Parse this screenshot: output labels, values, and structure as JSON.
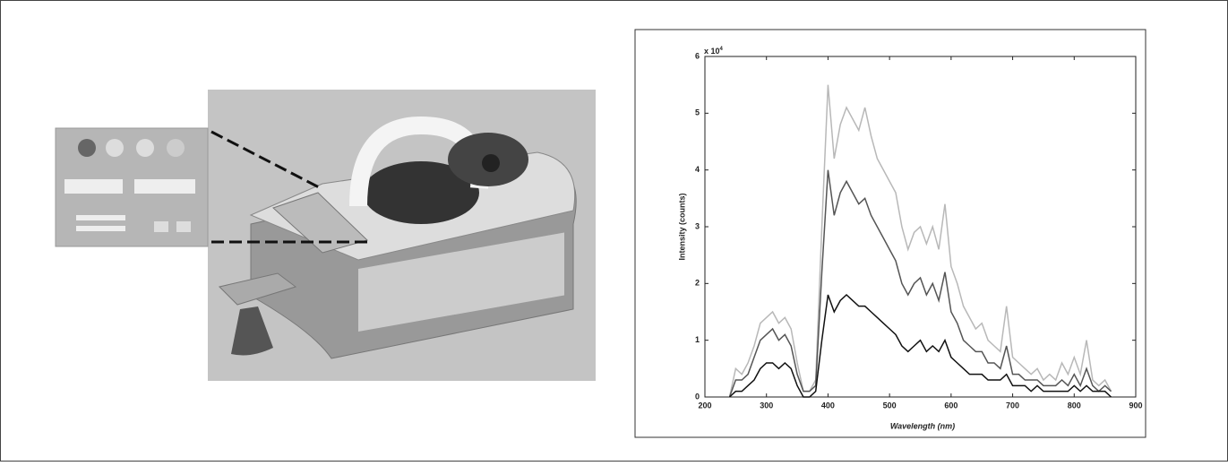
{
  "chart_data": {
    "type": "line",
    "x_label": "Wavelength (nm)",
    "y_label": "Intensity (counts)",
    "y_multiplier": {
      "base": "x 10",
      "exponent": "4"
    },
    "x": [
      240,
      250,
      260,
      270,
      280,
      290,
      300,
      310,
      320,
      330,
      340,
      350,
      360,
      370,
      380,
      390,
      400,
      410,
      420,
      430,
      440,
      450,
      460,
      470,
      480,
      490,
      500,
      510,
      520,
      530,
      540,
      550,
      560,
      570,
      580,
      590,
      600,
      610,
      620,
      630,
      640,
      650,
      660,
      670,
      680,
      690,
      700,
      710,
      720,
      730,
      740,
      750,
      760,
      770,
      780,
      790,
      800,
      810,
      820,
      830,
      840,
      850,
      860
    ],
    "series": [
      {
        "color": "#b8b8b8",
        "values": [
          0,
          0.5,
          0.4,
          0.6,
          0.9,
          1.3,
          1.4,
          1.5,
          1.3,
          1.4,
          1.2,
          0.6,
          0.1,
          0.1,
          0.3,
          3.0,
          5.5,
          4.2,
          4.8,
          5.1,
          4.9,
          4.7,
          5.1,
          4.6,
          4.2,
          4.0,
          3.8,
          3.6,
          3.0,
          2.6,
          2.9,
          3.0,
          2.7,
          3.0,
          2.6,
          3.4,
          2.3,
          2.0,
          1.6,
          1.4,
          1.2,
          1.3,
          1.0,
          0.9,
          0.8,
          1.6,
          0.7,
          0.6,
          0.5,
          0.4,
          0.5,
          0.3,
          0.4,
          0.3,
          0.6,
          0.4,
          0.7,
          0.4,
          1.0,
          0.3,
          0.2,
          0.3,
          0.1
        ]
      },
      {
        "color": "#555555",
        "values": [
          0,
          0.3,
          0.3,
          0.4,
          0.7,
          1.0,
          1.1,
          1.2,
          1.0,
          1.1,
          0.9,
          0.4,
          0.1,
          0.1,
          0.2,
          2.2,
          4.0,
          3.2,
          3.6,
          3.8,
          3.6,
          3.4,
          3.5,
          3.2,
          3.0,
          2.8,
          2.6,
          2.4,
          2.0,
          1.8,
          2.0,
          2.1,
          1.8,
          2.0,
          1.7,
          2.2,
          1.5,
          1.3,
          1.0,
          0.9,
          0.8,
          0.8,
          0.6,
          0.6,
          0.5,
          0.9,
          0.4,
          0.4,
          0.3,
          0.3,
          0.3,
          0.2,
          0.2,
          0.2,
          0.3,
          0.2,
          0.4,
          0.2,
          0.5,
          0.2,
          0.1,
          0.2,
          0.1
        ]
      },
      {
        "color": "#111111",
        "values": [
          0,
          0.1,
          0.1,
          0.2,
          0.3,
          0.5,
          0.6,
          0.6,
          0.5,
          0.6,
          0.5,
          0.2,
          0,
          0,
          0.1,
          1.0,
          1.8,
          1.5,
          1.7,
          1.8,
          1.7,
          1.6,
          1.6,
          1.5,
          1.4,
          1.3,
          1.2,
          1.1,
          0.9,
          0.8,
          0.9,
          1.0,
          0.8,
          0.9,
          0.8,
          1.0,
          0.7,
          0.6,
          0.5,
          0.4,
          0.4,
          0.4,
          0.3,
          0.3,
          0.3,
          0.4,
          0.2,
          0.2,
          0.2,
          0.1,
          0.2,
          0.1,
          0.1,
          0.1,
          0.1,
          0.1,
          0.2,
          0.1,
          0.2,
          0.1,
          0.1,
          0.1,
          0
        ]
      }
    ],
    "xlim": [
      200,
      900
    ],
    "xticks": [
      200,
      300,
      400,
      500,
      600,
      700,
      800,
      900
    ],
    "ylim": [
      0,
      6
    ],
    "yticks": [
      0,
      1,
      2,
      3,
      4,
      5,
      6
    ],
    "grid": false
  }
}
